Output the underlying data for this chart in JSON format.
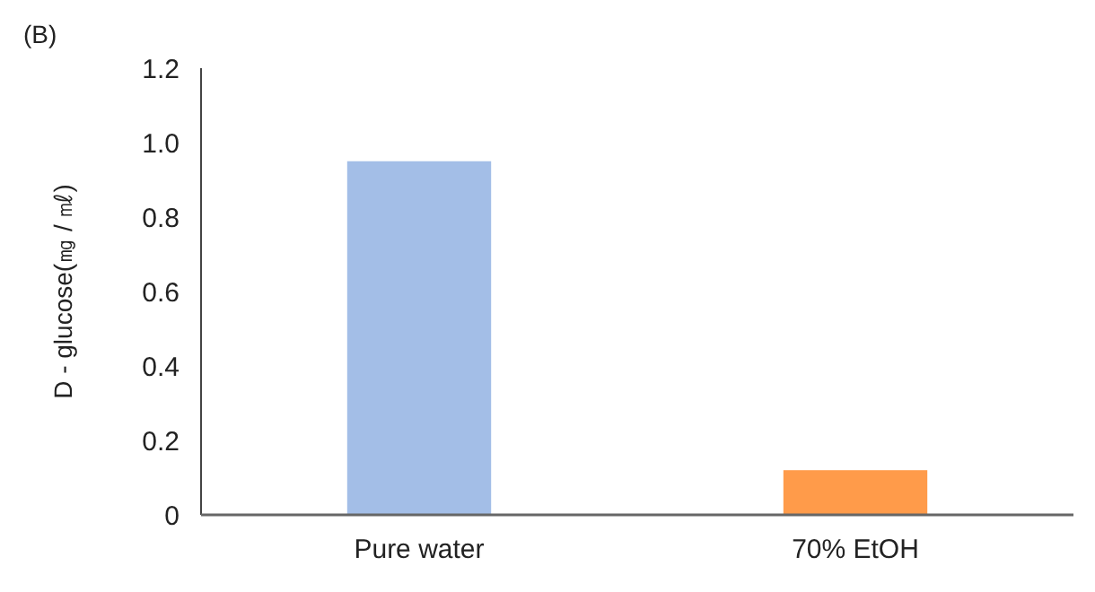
{
  "chart_data": {
    "type": "bar",
    "annotations": [
      "(B)"
    ],
    "ylabel": "D - glucose(㎎ / ㎖)",
    "categories": [
      "Pure water",
      "70% EtOH"
    ],
    "values": [
      0.95,
      0.12
    ],
    "colors": [
      "#a3bee7",
      "#ff9b4a"
    ],
    "ylim": [
      0,
      1.2
    ],
    "yticks": [
      0,
      0.2,
      0.4,
      0.6,
      0.8,
      {
        "value": 1,
        "label": "1.0"
      },
      1.2
    ]
  }
}
